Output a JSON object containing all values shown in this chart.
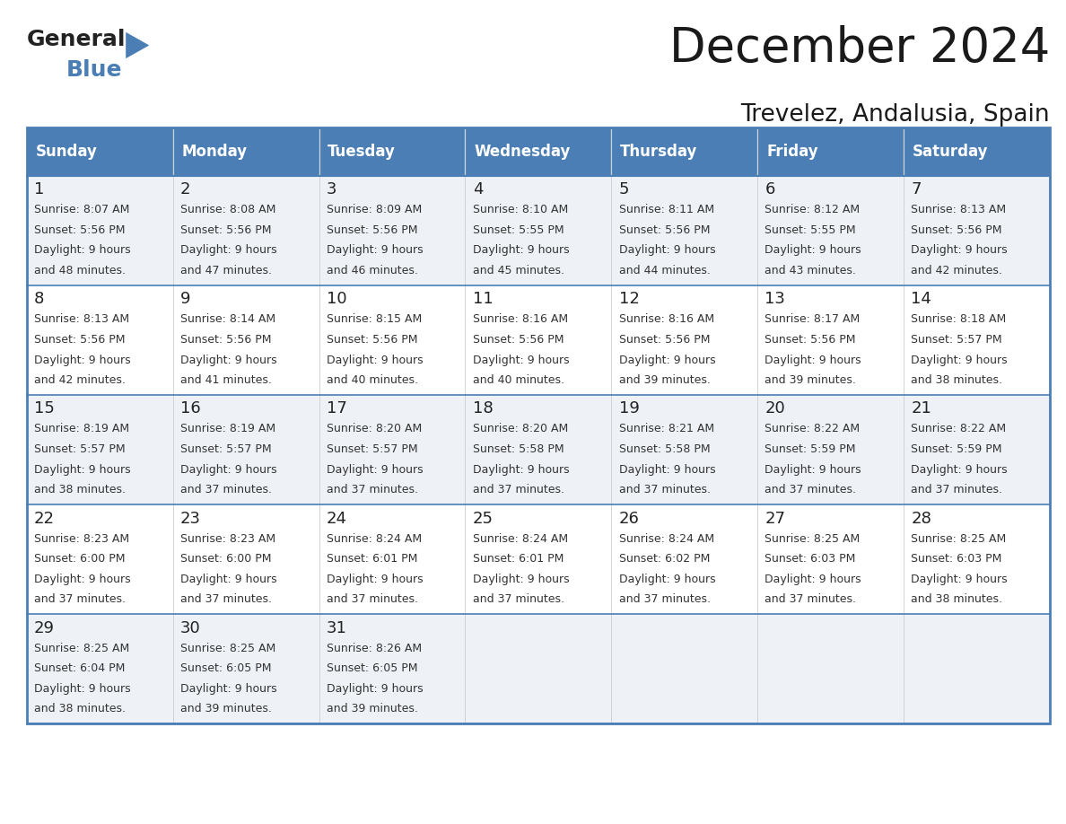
{
  "title": "December 2024",
  "subtitle": "Trevelez, Andalusia, Spain",
  "header_color": "#4a7eb5",
  "header_text_color": "#ffffff",
  "row_bg_odd": "#eef2f7",
  "row_bg_even": "#ffffff",
  "text_color": "#333333",
  "border_color": "#4a7eb5",
  "days_of_week": [
    "Sunday",
    "Monday",
    "Tuesday",
    "Wednesday",
    "Thursday",
    "Friday",
    "Saturday"
  ],
  "weeks": [
    [
      {
        "day": "1",
        "sunrise": "8:07 AM",
        "sunset": "5:56 PM",
        "daylight_h": "9 hours",
        "daylight_m": "48 minutes."
      },
      {
        "day": "2",
        "sunrise": "8:08 AM",
        "sunset": "5:56 PM",
        "daylight_h": "9 hours",
        "daylight_m": "47 minutes."
      },
      {
        "day": "3",
        "sunrise": "8:09 AM",
        "sunset": "5:56 PM",
        "daylight_h": "9 hours",
        "daylight_m": "46 minutes."
      },
      {
        "day": "4",
        "sunrise": "8:10 AM",
        "sunset": "5:55 PM",
        "daylight_h": "9 hours",
        "daylight_m": "45 minutes."
      },
      {
        "day": "5",
        "sunrise": "8:11 AM",
        "sunset": "5:56 PM",
        "daylight_h": "9 hours",
        "daylight_m": "44 minutes."
      },
      {
        "day": "6",
        "sunrise": "8:12 AM",
        "sunset": "5:55 PM",
        "daylight_h": "9 hours",
        "daylight_m": "43 minutes."
      },
      {
        "day": "7",
        "sunrise": "8:13 AM",
        "sunset": "5:56 PM",
        "daylight_h": "9 hours",
        "daylight_m": "42 minutes."
      }
    ],
    [
      {
        "day": "8",
        "sunrise": "8:13 AM",
        "sunset": "5:56 PM",
        "daylight_h": "9 hours",
        "daylight_m": "42 minutes."
      },
      {
        "day": "9",
        "sunrise": "8:14 AM",
        "sunset": "5:56 PM",
        "daylight_h": "9 hours",
        "daylight_m": "41 minutes."
      },
      {
        "day": "10",
        "sunrise": "8:15 AM",
        "sunset": "5:56 PM",
        "daylight_h": "9 hours",
        "daylight_m": "40 minutes."
      },
      {
        "day": "11",
        "sunrise": "8:16 AM",
        "sunset": "5:56 PM",
        "daylight_h": "9 hours",
        "daylight_m": "40 minutes."
      },
      {
        "day": "12",
        "sunrise": "8:16 AM",
        "sunset": "5:56 PM",
        "daylight_h": "9 hours",
        "daylight_m": "39 minutes."
      },
      {
        "day": "13",
        "sunrise": "8:17 AM",
        "sunset": "5:56 PM",
        "daylight_h": "9 hours",
        "daylight_m": "39 minutes."
      },
      {
        "day": "14",
        "sunrise": "8:18 AM",
        "sunset": "5:57 PM",
        "daylight_h": "9 hours",
        "daylight_m": "38 minutes."
      }
    ],
    [
      {
        "day": "15",
        "sunrise": "8:19 AM",
        "sunset": "5:57 PM",
        "daylight_h": "9 hours",
        "daylight_m": "38 minutes."
      },
      {
        "day": "16",
        "sunrise": "8:19 AM",
        "sunset": "5:57 PM",
        "daylight_h": "9 hours",
        "daylight_m": "37 minutes."
      },
      {
        "day": "17",
        "sunrise": "8:20 AM",
        "sunset": "5:57 PM",
        "daylight_h": "9 hours",
        "daylight_m": "37 minutes."
      },
      {
        "day": "18",
        "sunrise": "8:20 AM",
        "sunset": "5:58 PM",
        "daylight_h": "9 hours",
        "daylight_m": "37 minutes."
      },
      {
        "day": "19",
        "sunrise": "8:21 AM",
        "sunset": "5:58 PM",
        "daylight_h": "9 hours",
        "daylight_m": "37 minutes."
      },
      {
        "day": "20",
        "sunrise": "8:22 AM",
        "sunset": "5:59 PM",
        "daylight_h": "9 hours",
        "daylight_m": "37 minutes."
      },
      {
        "day": "21",
        "sunrise": "8:22 AM",
        "sunset": "5:59 PM",
        "daylight_h": "9 hours",
        "daylight_m": "37 minutes."
      }
    ],
    [
      {
        "day": "22",
        "sunrise": "8:23 AM",
        "sunset": "6:00 PM",
        "daylight_h": "9 hours",
        "daylight_m": "37 minutes."
      },
      {
        "day": "23",
        "sunrise": "8:23 AM",
        "sunset": "6:00 PM",
        "daylight_h": "9 hours",
        "daylight_m": "37 minutes."
      },
      {
        "day": "24",
        "sunrise": "8:24 AM",
        "sunset": "6:01 PM",
        "daylight_h": "9 hours",
        "daylight_m": "37 minutes."
      },
      {
        "day": "25",
        "sunrise": "8:24 AM",
        "sunset": "6:01 PM",
        "daylight_h": "9 hours",
        "daylight_m": "37 minutes."
      },
      {
        "day": "26",
        "sunrise": "8:24 AM",
        "sunset": "6:02 PM",
        "daylight_h": "9 hours",
        "daylight_m": "37 minutes."
      },
      {
        "day": "27",
        "sunrise": "8:25 AM",
        "sunset": "6:03 PM",
        "daylight_h": "9 hours",
        "daylight_m": "37 minutes."
      },
      {
        "day": "28",
        "sunrise": "8:25 AM",
        "sunset": "6:03 PM",
        "daylight_h": "9 hours",
        "daylight_m": "38 minutes."
      }
    ],
    [
      {
        "day": "29",
        "sunrise": "8:25 AM",
        "sunset": "6:04 PM",
        "daylight_h": "9 hours",
        "daylight_m": "38 minutes."
      },
      {
        "day": "30",
        "sunrise": "8:25 AM",
        "sunset": "6:05 PM",
        "daylight_h": "9 hours",
        "daylight_m": "39 minutes."
      },
      {
        "day": "31",
        "sunrise": "8:26 AM",
        "sunset": "6:05 PM",
        "daylight_h": "9 hours",
        "daylight_m": "39 minutes."
      },
      null,
      null,
      null,
      null
    ]
  ],
  "figsize": [
    11.88,
    9.18
  ],
  "dpi": 100
}
